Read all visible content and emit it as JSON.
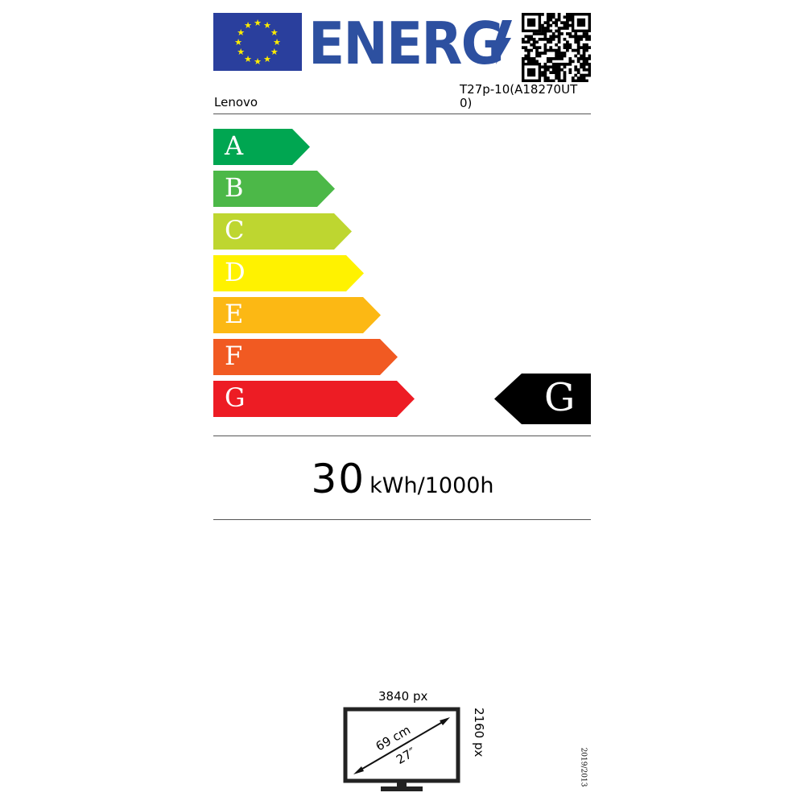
{
  "header": {
    "logo_text": "ENERG",
    "brand": "Lenovo",
    "model": "T27p-10(A18270UT0)",
    "model_line1": "T27p-10(A18270UT",
    "model_line2": "0)",
    "colors": {
      "eu_blue": "#2a3f9d",
      "star": "#ffed00",
      "logo_blue": "#2d50a0"
    }
  },
  "scale": {
    "classes": [
      {
        "label": "A",
        "color": "#00a651"
      },
      {
        "label": "B",
        "color": "#4cb848"
      },
      {
        "label": "C",
        "color": "#bed630"
      },
      {
        "label": "D",
        "color": "#fff200"
      },
      {
        "label": "E",
        "color": "#fcb814"
      },
      {
        "label": "F",
        "color": "#f15a22"
      },
      {
        "label": "G",
        "color": "#ed1c24"
      }
    ],
    "rating": "G"
  },
  "consumption": {
    "value": "30",
    "unit": "kWh/1000h"
  },
  "screen": {
    "width_px": "3840 px",
    "height_px": "2160 px",
    "diag_cm": "69 cm",
    "diag_in": "27″"
  },
  "regulation": "2019/2013"
}
